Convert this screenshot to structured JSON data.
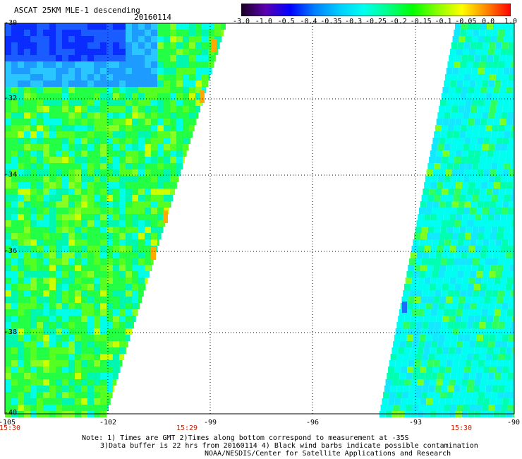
{
  "header": {
    "title": "ASCAT 25KM MLE-1 descending",
    "date": "20160114"
  },
  "colorbar": {
    "labels": [
      "-3.0",
      "-1.0",
      "-0.5",
      "-0.4",
      "-0.35",
      "-0.3",
      "-0.25",
      "-0.2",
      "-0.15",
      "-0.1",
      "-0.05",
      "0.0",
      "1.0"
    ],
    "colors": [
      "#1a0022",
      "#5a00b0",
      "#0000ff",
      "#0080ff",
      "#00ccff",
      "#00ffee",
      "#00ff88",
      "#00ff00",
      "#88ff00",
      "#ffff00",
      "#ff8800",
      "#ff0000"
    ]
  },
  "map": {
    "lat_labels": [
      "-30",
      "-32",
      "-34",
      "-36",
      "-38",
      "-40"
    ],
    "lon_labels": [
      "-105",
      "-102",
      "-99",
      "-96",
      "-93",
      "-90"
    ],
    "time_labels": [
      "15:30",
      "15:29",
      "15:30"
    ],
    "lon_range": [
      -105,
      -90
    ],
    "lat_range": [
      -30,
      -40
    ]
  },
  "footer": {
    "note1": "Note: 1) Times are GMT 2)Times along bottom correspond to measurement at -35S",
    "note2": "3)Data buffer is 22 hrs from 20160114 4) Black wind barbs indicate possible contamination",
    "credit": "NOAA/NESDIS/Center for Satellite Applications and Research"
  }
}
